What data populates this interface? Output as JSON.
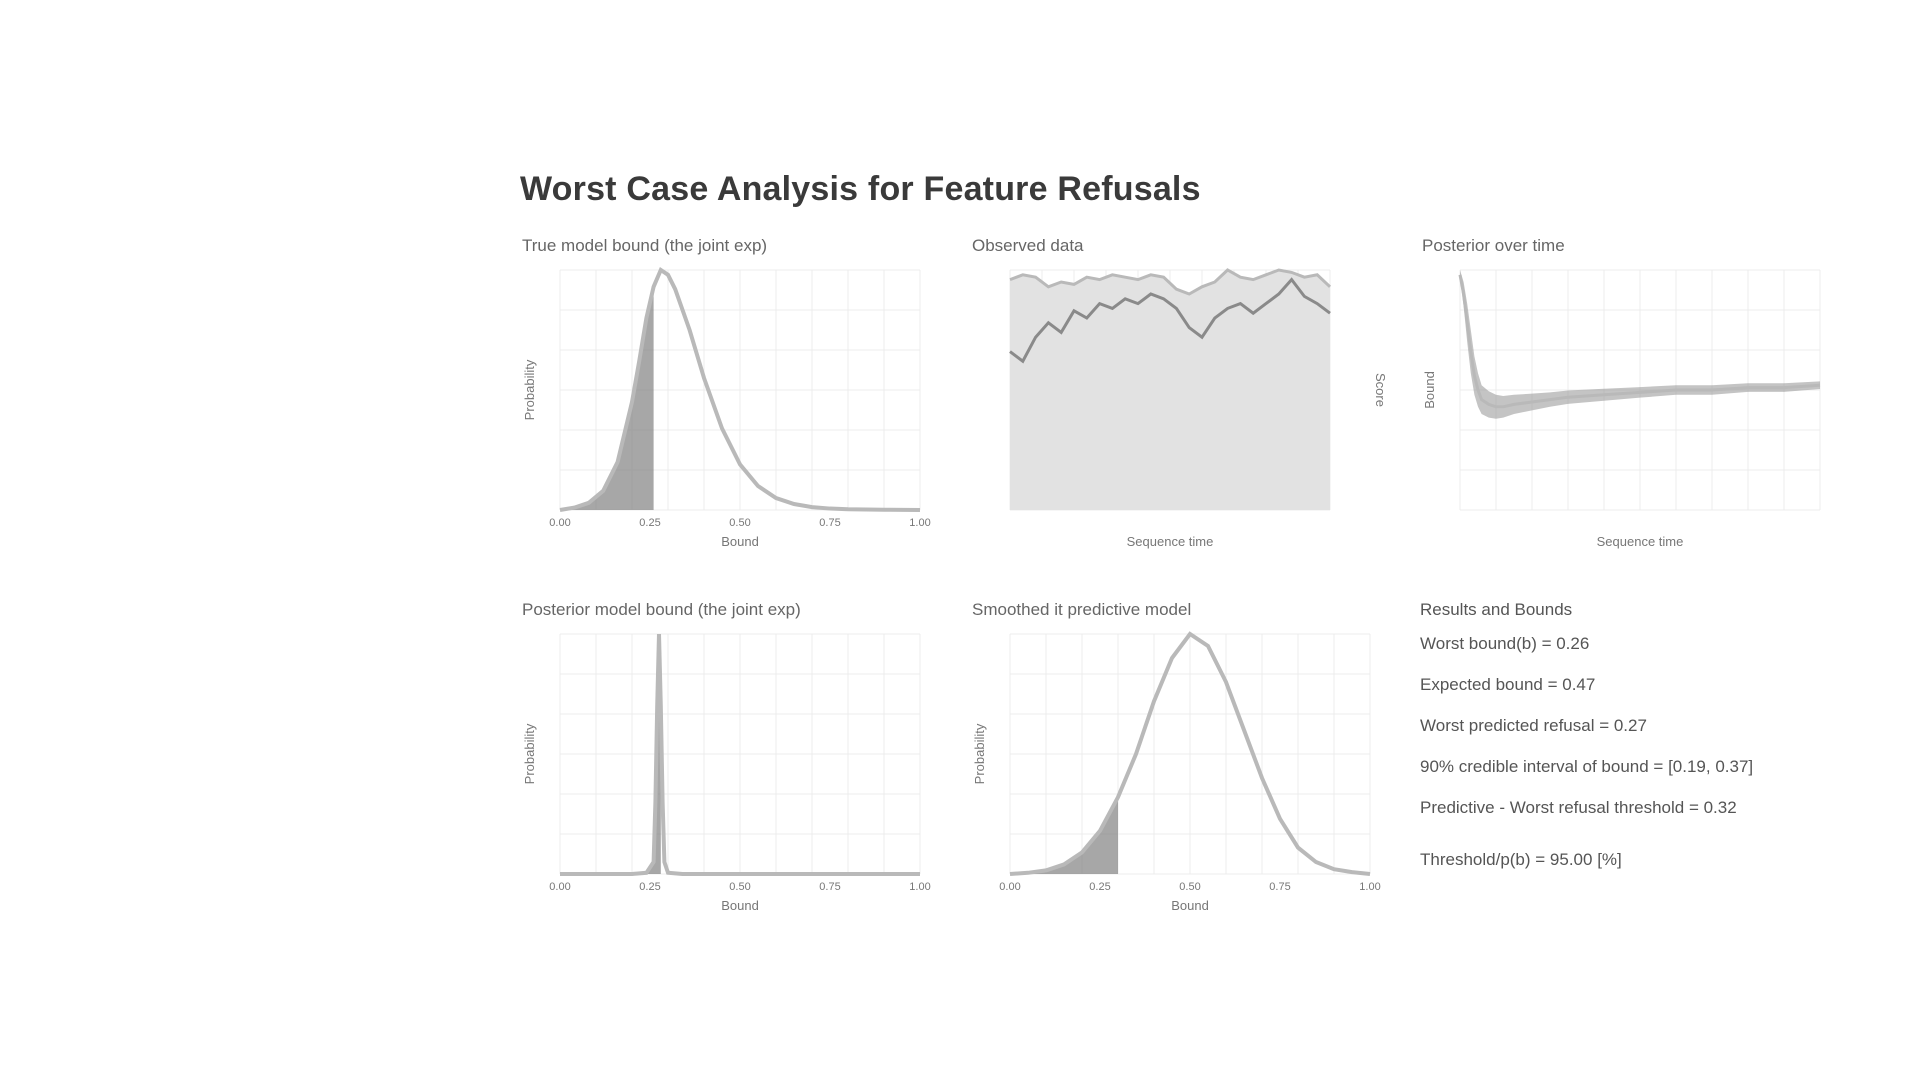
{
  "title": "Worst Case Analysis for Feature Refusals",
  "colors": {
    "curve": "#b9b9b9",
    "fill_light": "#e2e2e2",
    "fill_dark": "#8a8a8a",
    "grid": "#ececec",
    "axis_text": "#777777"
  },
  "chart_data": [
    {
      "type": "area",
      "title": "True model bound (the joint exp)",
      "xlabel": "Bound",
      "ylabel": "Probability",
      "x_ticks": [
        "0.00",
        "0.25",
        "0.50",
        "0.75",
        "1.00"
      ],
      "xlim": [
        0,
        1
      ],
      "ylim": [
        0,
        1
      ],
      "x": [
        0.0,
        0.04,
        0.08,
        0.12,
        0.16,
        0.2,
        0.22,
        0.24,
        0.26,
        0.28,
        0.3,
        0.32,
        0.36,
        0.4,
        0.45,
        0.5,
        0.55,
        0.6,
        0.65,
        0.7,
        0.75,
        0.8,
        0.9,
        1.0
      ],
      "y": [
        0.0,
        0.01,
        0.03,
        0.08,
        0.2,
        0.45,
        0.62,
        0.8,
        0.93,
        1.0,
        0.98,
        0.92,
        0.75,
        0.55,
        0.34,
        0.19,
        0.1,
        0.05,
        0.025,
        0.012,
        0.006,
        0.003,
        0.001,
        0.0
      ],
      "shaded_below": 0.26,
      "grid": true
    },
    {
      "type": "area",
      "title": "Observed data",
      "xlabel": "Sequence time",
      "ylabel": "",
      "y2label": "Score",
      "xlim": [
        0,
        50
      ],
      "ylim": [
        0,
        1
      ],
      "x": [
        0,
        2,
        4,
        6,
        8,
        10,
        12,
        14,
        16,
        18,
        20,
        22,
        24,
        26,
        28,
        30,
        32,
        34,
        36,
        38,
        40,
        42,
        44,
        46,
        48,
        50
      ],
      "y_upper": [
        0.96,
        0.98,
        0.97,
        0.93,
        0.95,
        0.94,
        0.97,
        0.96,
        0.98,
        0.97,
        0.96,
        0.98,
        0.97,
        0.92,
        0.9,
        0.93,
        0.95,
        1.0,
        0.97,
        0.96,
        0.98,
        1.0,
        0.99,
        0.97,
        0.98,
        0.93
      ],
      "y_lower": [
        0.66,
        0.62,
        0.72,
        0.78,
        0.74,
        0.83,
        0.8,
        0.86,
        0.84,
        0.88,
        0.86,
        0.9,
        0.88,
        0.84,
        0.76,
        0.72,
        0.8,
        0.84,
        0.86,
        0.82,
        0.86,
        0.9,
        0.96,
        0.89,
        0.86,
        0.82
      ],
      "grid": true
    },
    {
      "type": "line",
      "title": "Posterior over time",
      "xlabel": "Sequence time",
      "ylabel": "Bound",
      "xlim": [
        0,
        100
      ],
      "ylim": [
        0,
        1
      ],
      "x": [
        0,
        1,
        2,
        3,
        4,
        5,
        6,
        8,
        10,
        12,
        15,
        20,
        25,
        30,
        40,
        50,
        60,
        70,
        80,
        90,
        100
      ],
      "y_mid": [
        0.98,
        0.9,
        0.78,
        0.66,
        0.56,
        0.5,
        0.46,
        0.44,
        0.43,
        0.43,
        0.44,
        0.45,
        0.46,
        0.47,
        0.48,
        0.49,
        0.5,
        0.5,
        0.51,
        0.51,
        0.52
      ],
      "y_band": [
        0.02,
        0.05,
        0.08,
        0.09,
        0.08,
        0.07,
        0.06,
        0.055,
        0.05,
        0.045,
        0.04,
        0.035,
        0.03,
        0.028,
        0.025,
        0.022,
        0.02,
        0.02,
        0.018,
        0.018,
        0.016
      ],
      "grid": true
    },
    {
      "type": "area",
      "title": "Posterior model bound (the joint exp)",
      "xlabel": "Bound",
      "ylabel": "Probability",
      "x_ticks": [
        "0.00",
        "0.25",
        "0.50",
        "0.75",
        "1.00"
      ],
      "xlim": [
        0,
        1
      ],
      "ylim": [
        0,
        1
      ],
      "x": [
        0.0,
        0.2,
        0.24,
        0.26,
        0.265,
        0.27,
        0.275,
        0.28,
        0.285,
        0.29,
        0.3,
        0.34,
        0.5,
        1.0
      ],
      "y": [
        0.0,
        0.0,
        0.005,
        0.05,
        0.3,
        0.7,
        1.0,
        0.7,
        0.3,
        0.05,
        0.005,
        0.0,
        0.0,
        0.0
      ],
      "shaded_below": 0.28,
      "grid": true
    },
    {
      "type": "area",
      "title": "Smoothed it predictive model",
      "xlabel": "Bound",
      "ylabel": "Probability",
      "x_ticks": [
        "0.00",
        "0.25",
        "0.50",
        "0.75",
        "1.00"
      ],
      "xlim": [
        0,
        1
      ],
      "ylim": [
        0,
        1
      ],
      "x": [
        0.0,
        0.05,
        0.1,
        0.15,
        0.2,
        0.25,
        0.3,
        0.35,
        0.4,
        0.45,
        0.5,
        0.55,
        0.6,
        0.65,
        0.7,
        0.75,
        0.8,
        0.85,
        0.9,
        0.95,
        1.0
      ],
      "y": [
        0.0,
        0.005,
        0.015,
        0.04,
        0.09,
        0.18,
        0.32,
        0.5,
        0.72,
        0.9,
        1.0,
        0.95,
        0.8,
        0.6,
        0.4,
        0.23,
        0.11,
        0.05,
        0.02,
        0.008,
        0.0
      ],
      "shaded_below": 0.32,
      "grid": true
    }
  ],
  "stats": {
    "heading": "Results and Bounds",
    "rows": [
      "Worst bound(b) = 0.26",
      "Expected bound = 0.47",
      "Worst predicted refusal = 0.27",
      "90% credible interval of bound = [0.19, 0.37]",
      "Predictive - Worst refusal threshold = 0.32"
    ],
    "threshold": "Threshold/p(b) = 95.00 [%]"
  }
}
